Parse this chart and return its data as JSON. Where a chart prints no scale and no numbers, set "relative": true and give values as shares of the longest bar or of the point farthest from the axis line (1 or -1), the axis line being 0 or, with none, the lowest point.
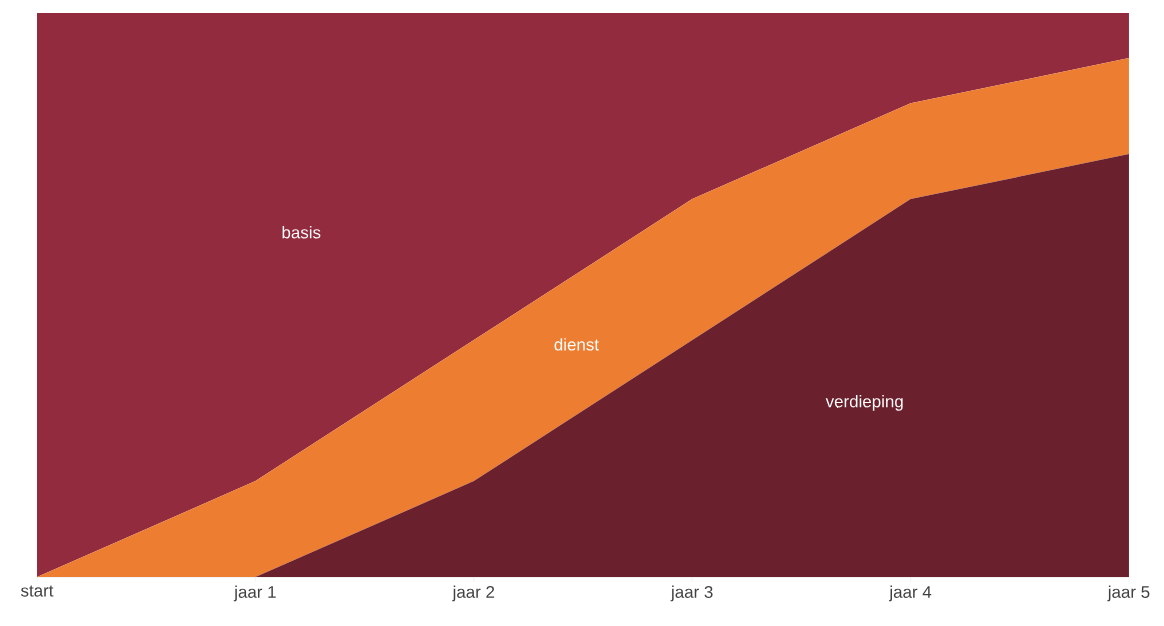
{
  "chart_data": {
    "type": "area",
    "stacked": true,
    "relative": true,
    "categories": [
      "start",
      "jaar 1",
      "jaar 2",
      "jaar 3",
      "jaar 4",
      "jaar 5"
    ],
    "series": [
      {
        "name": "verdieping",
        "color": "#6b212d",
        "values": [
          0,
          0,
          0.17,
          0.42,
          0.67,
          0.75
        ]
      },
      {
        "name": "dienst",
        "color": "#ed7d31",
        "values": [
          0,
          0.17,
          0.25,
          0.25,
          0.17,
          0.17
        ]
      },
      {
        "name": "basis",
        "color": "#922b3e",
        "values": [
          1,
          0.83,
          0.58,
          0.33,
          0.16,
          0.08
        ]
      }
    ]
  }
}
